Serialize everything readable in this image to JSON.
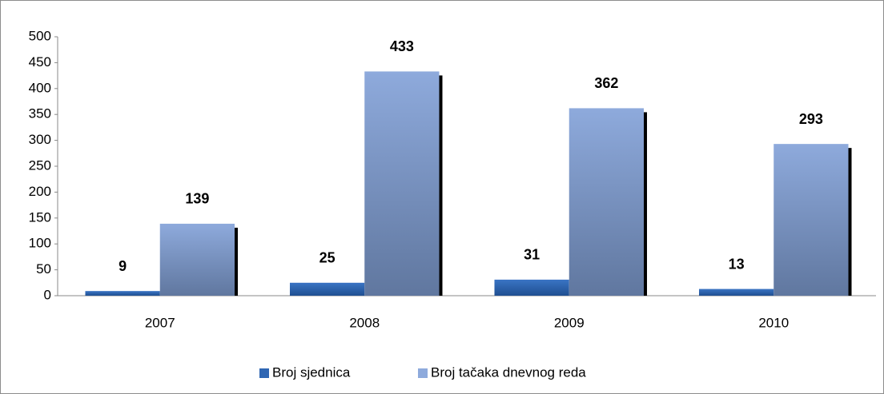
{
  "chart_data": {
    "type": "bar",
    "categories": [
      "2007",
      "2008",
      "2009",
      "2010"
    ],
    "series": [
      {
        "name": "Broj sjednica",
        "color": "#2f66b3",
        "values": [
          9,
          25,
          31,
          13
        ]
      },
      {
        "name": "Broj tačaka dnevnog reda",
        "color": "#8eaadc",
        "values": [
          139,
          433,
          362,
          293
        ]
      }
    ],
    "ylim": [
      0,
      500
    ],
    "yticks": [
      0,
      50,
      100,
      150,
      200,
      250,
      300,
      350,
      400,
      450,
      500
    ],
    "legend": "bottom"
  }
}
